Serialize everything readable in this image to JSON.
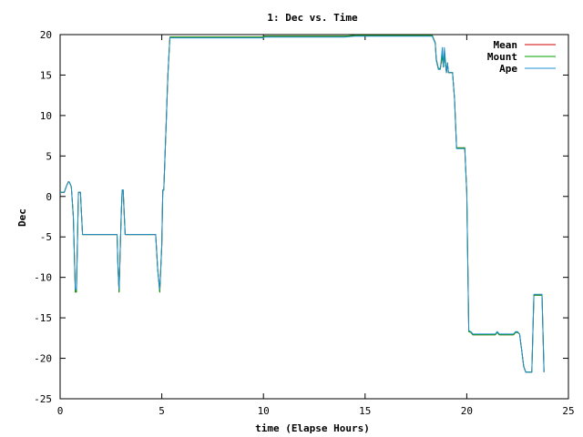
{
  "chart_data": {
    "type": "line",
    "title": "1: Dec vs. Time",
    "xlabel": "time (Elapse Hours)",
    "ylabel": "Dec",
    "xlim": [
      0,
      25
    ],
    "ylim": [
      -25,
      20
    ],
    "xticks": [
      0,
      5,
      10,
      15,
      20,
      25
    ],
    "yticks": [
      20,
      15,
      10,
      5,
      0,
      -5,
      -10,
      -15,
      -20,
      -25
    ],
    "grid": false,
    "legend_position": "top-right",
    "series": [
      {
        "name": "Mean",
        "color": "#d00000",
        "x": [
          0,
          0.2,
          0.3,
          0.4,
          0.45,
          0.55,
          0.65,
          0.75,
          0.8,
          0.9,
          1.0,
          1.05,
          1.1,
          2.0,
          2.8,
          2.85,
          2.9,
          3.0,
          3.05,
          3.1,
          3.15,
          3.2,
          4.0,
          4.7,
          4.8,
          4.9,
          5.0,
          5.05,
          5.1,
          5.2,
          5.3,
          5.4,
          5.5,
          7.0,
          10.0,
          10.05,
          14.0,
          14.5,
          18.0,
          18.3,
          18.45,
          18.5,
          18.6,
          18.7,
          18.8,
          18.85,
          18.9,
          19.0,
          19.05,
          19.1,
          19.3,
          19.4,
          19.5,
          19.55,
          19.6,
          19.9,
          20.0,
          20.1,
          20.2,
          20.3,
          20.5,
          21.0,
          21.4,
          21.5,
          21.6,
          21.7,
          22.0,
          22.3,
          22.4,
          22.5,
          22.6,
          22.7,
          22.8,
          22.9,
          23.0,
          23.1,
          23.2,
          23.3,
          23.5,
          23.6,
          23.7,
          23.8
        ],
        "values": [
          0.5,
          0.5,
          1.2,
          1.8,
          1.8,
          1.2,
          -2.5,
          -11.8,
          -11.8,
          0.5,
          0.5,
          -2.0,
          -4.7,
          -4.7,
          -4.7,
          -9.0,
          -11.8,
          -2.5,
          0.8,
          0.8,
          -2.0,
          -4.7,
          -4.7,
          -4.7,
          -9.0,
          -11.8,
          -6.0,
          0.8,
          0.8,
          8.0,
          15.0,
          19.7,
          19.7,
          19.7,
          19.7,
          19.8,
          19.8,
          19.9,
          19.9,
          19.9,
          19.0,
          17.0,
          15.8,
          15.8,
          17.5,
          16.0,
          17.5,
          15.3,
          16.5,
          15.3,
          15.3,
          12.0,
          6.0,
          6.0,
          6.0,
          6.0,
          0.5,
          -16.7,
          -16.8,
          -17.1,
          -17.1,
          -17.1,
          -17.1,
          -16.8,
          -17.1,
          -17.1,
          -17.1,
          -17.1,
          -16.8,
          -16.8,
          -17.0,
          -19.0,
          -21.0,
          -21.7,
          -21.7,
          -21.7,
          -21.7,
          -12.2,
          -12.2,
          -12.2,
          -12.2,
          -21.7
        ]
      },
      {
        "name": "Mount",
        "color": "#00a000",
        "x": [
          0,
          0.2,
          0.3,
          0.4,
          0.45,
          0.55,
          0.65,
          0.75,
          0.8,
          0.9,
          1.0,
          1.05,
          1.1,
          2.0,
          2.8,
          2.85,
          2.9,
          3.0,
          3.05,
          3.1,
          3.15,
          3.2,
          4.0,
          4.7,
          4.8,
          4.9,
          5.0,
          5.05,
          5.1,
          5.2,
          5.3,
          5.4,
          5.5,
          7.0,
          10.0,
          10.05,
          14.0,
          14.5,
          18.0,
          18.3,
          18.45,
          18.5,
          18.6,
          18.7,
          18.8,
          18.85,
          18.9,
          19.0,
          19.05,
          19.1,
          19.3,
          19.4,
          19.5,
          19.55,
          19.6,
          19.9,
          20.0,
          20.1,
          20.2,
          20.3,
          20.5,
          21.0,
          21.4,
          21.5,
          21.6,
          21.7,
          22.0,
          22.3,
          22.4,
          22.5,
          22.6,
          22.7,
          22.8,
          22.9,
          23.0,
          23.1,
          23.2,
          23.3,
          23.5,
          23.6,
          23.7,
          23.8
        ],
        "values": [
          0.5,
          0.5,
          1.2,
          1.8,
          1.8,
          1.2,
          -2.5,
          -11.8,
          -11.8,
          0.5,
          0.5,
          -2.0,
          -4.7,
          -4.7,
          -4.7,
          -9.0,
          -11.8,
          -2.5,
          0.8,
          0.8,
          -2.0,
          -4.7,
          -4.7,
          -4.7,
          -9.0,
          -11.8,
          -6.0,
          0.8,
          0.8,
          8.0,
          15.0,
          19.7,
          19.7,
          19.7,
          19.7,
          19.8,
          19.8,
          19.9,
          19.9,
          19.9,
          19.0,
          17.0,
          15.8,
          15.8,
          17.5,
          16.0,
          17.5,
          15.3,
          16.5,
          15.3,
          15.3,
          12.0,
          6.0,
          6.0,
          6.0,
          6.0,
          0.5,
          -16.7,
          -16.8,
          -17.1,
          -17.1,
          -17.1,
          -17.1,
          -16.8,
          -17.1,
          -17.1,
          -17.1,
          -17.1,
          -16.8,
          -16.8,
          -17.0,
          -19.0,
          -21.0,
          -21.7,
          -21.7,
          -21.7,
          -21.7,
          -12.2,
          -12.2,
          -12.2,
          -12.2,
          -21.7
        ]
      },
      {
        "name": "Ape",
        "color": "#1e90d0",
        "x": [
          0,
          0.2,
          0.3,
          0.4,
          0.45,
          0.55,
          0.65,
          0.75,
          0.8,
          0.9,
          1.0,
          1.05,
          1.1,
          2.0,
          2.8,
          2.85,
          2.9,
          3.0,
          3.05,
          3.1,
          3.15,
          3.2,
          4.0,
          4.7,
          4.8,
          4.9,
          5.0,
          5.05,
          5.1,
          5.2,
          5.3,
          5.4,
          5.5,
          7.0,
          10.0,
          10.05,
          14.0,
          14.5,
          18.0,
          18.3,
          18.45,
          18.5,
          18.6,
          18.7,
          18.8,
          18.85,
          18.9,
          19.0,
          19.05,
          19.1,
          19.3,
          19.4,
          19.5,
          19.55,
          19.6,
          19.9,
          20.0,
          20.1,
          20.2,
          20.3,
          20.5,
          21.0,
          21.4,
          21.5,
          21.6,
          21.7,
          22.0,
          22.3,
          22.4,
          22.5,
          22.6,
          22.7,
          22.8,
          22.9,
          23.0,
          23.1,
          23.2,
          23.3,
          23.5,
          23.6,
          23.7,
          23.8
        ],
        "values": [
          0.5,
          0.5,
          1.2,
          1.8,
          1.8,
          1.2,
          -2.5,
          -11.5,
          -11.5,
          0.5,
          0.5,
          -2.0,
          -4.7,
          -4.7,
          -4.7,
          -9.0,
          -11.5,
          -2.5,
          0.8,
          0.8,
          -2.0,
          -4.7,
          -4.7,
          -4.7,
          -9.0,
          -11.5,
          -6.0,
          0.8,
          0.8,
          8.0,
          15.0,
          19.6,
          19.6,
          19.6,
          19.6,
          19.7,
          19.7,
          19.8,
          19.8,
          19.8,
          18.9,
          16.8,
          15.7,
          15.7,
          18.4,
          16.0,
          18.4,
          15.3,
          16.5,
          15.3,
          15.3,
          12.0,
          5.9,
          5.9,
          5.9,
          5.9,
          0.5,
          -16.6,
          -16.7,
          -17.0,
          -17.0,
          -17.0,
          -17.0,
          -16.7,
          -17.0,
          -17.0,
          -17.0,
          -17.0,
          -16.7,
          -16.7,
          -17.0,
          -19.0,
          -21.0,
          -21.7,
          -21.7,
          -21.7,
          -21.7,
          -12.1,
          -12.1,
          -12.1,
          -12.1,
          -21.7
        ]
      }
    ]
  }
}
